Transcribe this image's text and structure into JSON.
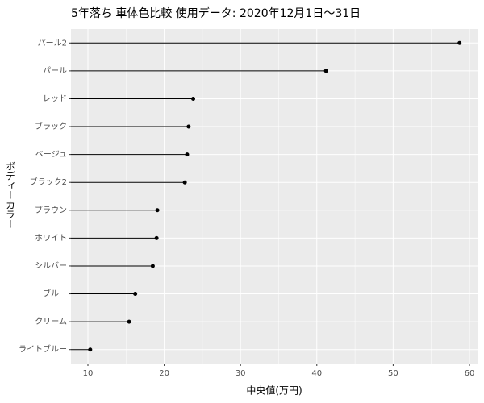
{
  "chart_data": {
    "type": "lollipop",
    "title": "5年落ち 車体色比較 使用データ: 2020年12月1日～31日",
    "x_label": "中央値(万円)",
    "y_label": "ボディーカラー",
    "categories": [
      "パール2",
      "パール",
      "レッド",
      "ブラック",
      "ベージュ",
      "ブラック2",
      "ブラウン",
      "ホワイト",
      "シルバー",
      "ブルー",
      "クリーム",
      "ライトブルー"
    ],
    "values": [
      58.7,
      41.2,
      23.8,
      23.2,
      23.0,
      22.7,
      19.1,
      19.0,
      18.5,
      16.2,
      15.4,
      10.3
    ],
    "color": "#000000",
    "xlim": [
      7.78,
      61.06
    ],
    "xticks": [
      10,
      20,
      30,
      40,
      50,
      60
    ],
    "grid": true
  }
}
